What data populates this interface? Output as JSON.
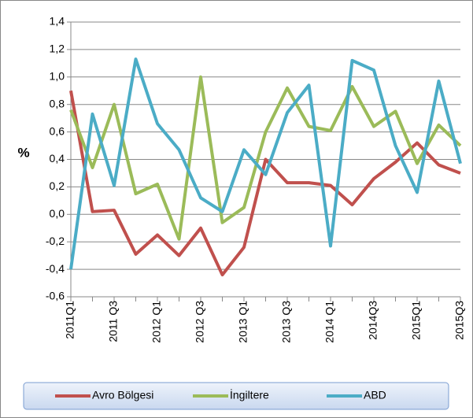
{
  "chart_data": {
    "type": "line",
    "ylabel": "%",
    "categories": [
      "2011Q1",
      null,
      "2011 Q3",
      null,
      "2012 Q1",
      null,
      "2012 Q3",
      null,
      "2013 Q1",
      null,
      "2013 Q3",
      null,
      "2014 Q1",
      null,
      "2014Q3",
      null,
      "2015Q1",
      null,
      "2015Q3"
    ],
    "series": [
      {
        "name": "Avro Bölgesi",
        "color": "#c0504d",
        "values": [
          0.9,
          0.02,
          0.03,
          -0.29,
          -0.15,
          -0.3,
          -0.1,
          -0.44,
          -0.24,
          0.4,
          0.23,
          0.23,
          0.21,
          0.07,
          0.26,
          0.38,
          0.52,
          0.36,
          0.3
        ]
      },
      {
        "name": "İngiltere",
        "color": "#9bbb59",
        "values": [
          0.76,
          0.34,
          0.8,
          0.15,
          0.22,
          -0.18,
          1.0,
          -0.06,
          0.05,
          0.6,
          0.92,
          0.64,
          0.61,
          0.93,
          0.64,
          0.75,
          0.37,
          0.65,
          0.5
        ]
      },
      {
        "name": "ABD",
        "color": "#4bacc6",
        "values": [
          -0.4,
          0.73,
          0.21,
          1.13,
          0.66,
          0.47,
          0.12,
          0.02,
          0.47,
          0.29,
          0.74,
          0.94,
          -0.23,
          1.12,
          1.05,
          0.5,
          0.16,
          0.97,
          0.37
        ]
      }
    ],
    "ylim": [
      -0.6,
      1.4
    ],
    "yticks": [
      {
        "value": -0.6,
        "label": "-0,6"
      },
      {
        "value": -0.4,
        "label": "-0,4"
      },
      {
        "value": -0.2,
        "label": "-0,2"
      },
      {
        "value": 0,
        "label": "0,0"
      },
      {
        "value": 0.2,
        "label": "0,2"
      },
      {
        "value": 0.4,
        "label": "0,4"
      },
      {
        "value": 0.6,
        "label": "0,6"
      },
      {
        "value": 0.8,
        "label": "0,8"
      },
      {
        "value": 1.0,
        "label": "1,0"
      },
      {
        "value": 1.2,
        "label": "1,2"
      },
      {
        "value": 1.4,
        "label": "1,4"
      }
    ],
    "grid": true,
    "legend": "bottom"
  }
}
